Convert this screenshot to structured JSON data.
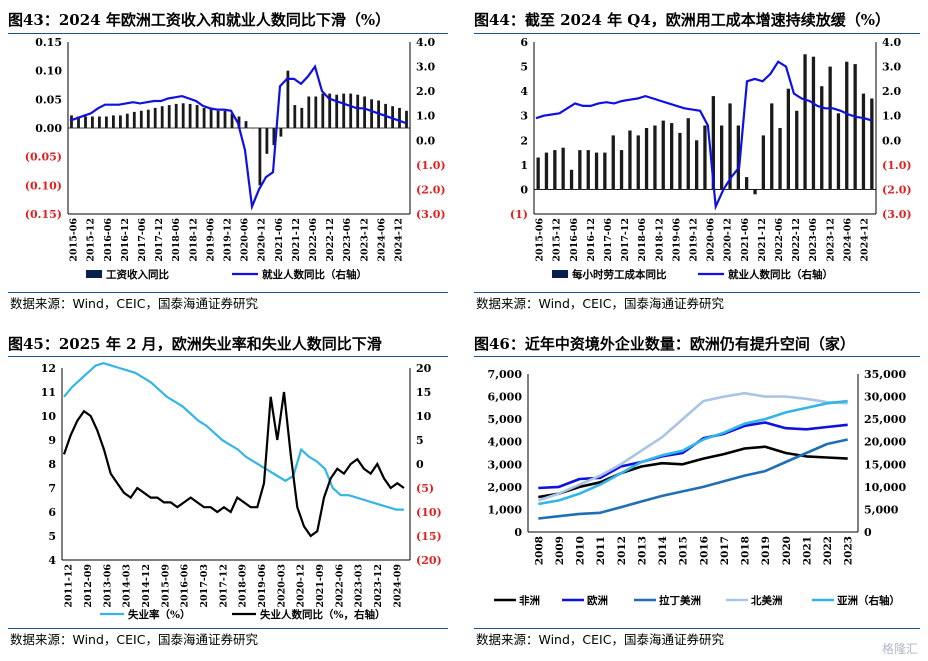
{
  "panels": [
    {
      "title": "图43：2024 年欧洲工资收入和就业人数同比下滑（%）",
      "source": "数据来源：Wind，CEIC，国泰海通证券研究"
    },
    {
      "title": "图44：截至 2024 年 Q4，欧洲用工成本增速持续放缓（%）",
      "source": "数据来源：Wind，CEIC，国泰海通证券研究"
    },
    {
      "title": "图45：2025 年 2 月，欧洲失业率和失业人数同比下滑",
      "source": "数据来源：Wind，CEIC，国泰海通证券研究"
    },
    {
      "title": "图46：近年中资境外企业数量：欧洲仍有提升空间（家）",
      "source": "数据来源：Wind，CEIC，国泰海通证券研究"
    }
  ],
  "watermark": "格隆汇",
  "colors": {
    "bar": "#1a1a1a",
    "blue": "#1010e0",
    "red": "#e02020",
    "cyan": "#33b5e5",
    "steel": "#1f6fb5",
    "lightblue": "#a9c4e4",
    "navy": "#0a1e50",
    "rule": "#1f4e9a"
  },
  "chart_data": [
    {
      "type": "bar+line",
      "x_ticks": [
        "2015-06",
        "2015-12",
        "2016-06",
        "2016-12",
        "2017-06",
        "2017-12",
        "2018-06",
        "2018-12",
        "2019-06",
        "2019-12",
        "2020-06",
        "2020-12",
        "2021-06",
        "2021-12",
        "2022-06",
        "2022-12",
        "2023-06",
        "2023-12",
        "2024-06",
        "2024-12"
      ],
      "left_ticks": [
        "0.15",
        "0.10",
        "0.05",
        "0.00",
        "(0.05)",
        "(0.10)",
        "(0.15)"
      ],
      "right_ticks": [
        "4.0",
        "3.0",
        "2.0",
        "1.0",
        "0.0",
        "(1.0)",
        "(2.0)",
        "(3.0)"
      ],
      "ylim_left": [
        -0.15,
        0.15
      ],
      "ylim_right": [
        -3,
        4
      ],
      "legend": [
        "工资收入同比",
        "就业人数同比（右轴）"
      ],
      "bars": [
        0.022,
        0.02,
        0.02,
        0.02,
        0.02,
        0.02,
        0.022,
        0.022,
        0.025,
        0.028,
        0.03,
        0.032,
        0.035,
        0.038,
        0.04,
        0.042,
        0.043,
        0.042,
        0.04,
        0.035,
        0.035,
        0.03,
        0.03,
        0.025,
        0.02,
        0.012,
        0.0,
        -0.1,
        -0.045,
        -0.03,
        -0.015,
        0.1,
        0.04,
        0.035,
        0.055,
        0.055,
        0.06,
        0.06,
        0.058,
        0.06,
        0.06,
        0.058,
        0.055,
        0.05,
        0.048,
        0.042,
        0.038,
        0.035,
        0.03
      ],
      "line": [
        0.8,
        0.9,
        1.0,
        1.1,
        1.3,
        1.45,
        1.45,
        1.45,
        1.5,
        1.55,
        1.5,
        1.55,
        1.6,
        1.6,
        1.7,
        1.75,
        1.8,
        1.7,
        1.6,
        1.4,
        1.3,
        1.25,
        1.25,
        1.2,
        0.7,
        -0.4,
        -2.7,
        -2.0,
        -1.5,
        -1.3,
        2.2,
        2.5,
        2.5,
        2.3,
        2.6,
        3.0,
        2.0,
        1.7,
        1.6,
        1.5,
        1.4,
        1.3,
        1.3,
        1.2,
        1.1,
        1.0,
        0.9,
        0.8,
        0.7
      ]
    },
    {
      "type": "bar+line",
      "x_ticks": [
        "2015-06",
        "2015-12",
        "2016-06",
        "2016-12",
        "2017-06",
        "2017-12",
        "2018-06",
        "2018-12",
        "2019-06",
        "2019-12",
        "2020-06",
        "2020-12",
        "2021-06",
        "2021-12",
        "2022-06",
        "2022-12",
        "2023-06",
        "2023-12",
        "2024-06",
        "2024-12"
      ],
      "left_ticks": [
        "6",
        "5",
        "4",
        "3",
        "2",
        "1",
        "0",
        "(1)"
      ],
      "right_ticks": [
        "4.0",
        "3.0",
        "2.0",
        "1.0",
        "0.0",
        "(1.0)",
        "(2.0)",
        "(3.0)"
      ],
      "ylim_left": [
        -1,
        6
      ],
      "ylim_right": [
        -3,
        4
      ],
      "legend": [
        "每小时劳工成本同比",
        "就业人数同比（右轴）"
      ],
      "bars": [
        1.3,
        1.5,
        1.6,
        1.7,
        0.8,
        1.6,
        1.6,
        1.5,
        1.5,
        2.2,
        1.6,
        2.4,
        2.2,
        2.5,
        2.6,
        2.8,
        2.7,
        2.3,
        2.9,
        2.0,
        2.6,
        3.8,
        2.6,
        3.5,
        2.6,
        0.5,
        -0.2,
        2.2,
        3.5,
        2.5,
        4.1,
        3.2,
        5.5,
        5.4,
        4.2,
        5.0,
        3.1,
        5.2,
        5.1,
        3.9,
        3.7
      ],
      "line": [
        0.9,
        1.0,
        1.05,
        1.1,
        1.3,
        1.5,
        1.4,
        1.4,
        1.5,
        1.55,
        1.5,
        1.6,
        1.65,
        1.7,
        1.8,
        1.7,
        1.6,
        1.5,
        1.4,
        1.3,
        1.25,
        1.2,
        0.6,
        -2.7,
        -2.0,
        -1.5,
        -1.1,
        2.4,
        2.5,
        2.4,
        2.7,
        3.2,
        3.0,
        1.9,
        1.7,
        1.6,
        1.4,
        1.3,
        1.3,
        1.2,
        1.05,
        0.95,
        0.9,
        0.8
      ]
    },
    {
      "type": "line",
      "x_ticks": [
        "2011-12",
        "2012-09",
        "2013-06",
        "2014-03",
        "2014-12",
        "2015-09",
        "2016-06",
        "2017-03",
        "2017-12",
        "2018-09",
        "2019-06",
        "2020-03",
        "2020-12",
        "2021-09",
        "2022-06",
        "2023-03",
        "2023-12",
        "2024-09"
      ],
      "left_ticks": [
        "12",
        "11",
        "10",
        "9",
        "8",
        "7",
        "6",
        "5",
        "4"
      ],
      "right_ticks": [
        "20",
        "15",
        "10",
        "5",
        "0",
        "(5)",
        "(10)",
        "(15)",
        "(20)"
      ],
      "ylim_left": [
        4,
        12
      ],
      "ylim_right": [
        -20,
        20
      ],
      "legend": [
        "失业率（%）",
        "失业人数同比（%，右轴）"
      ],
      "unemployment_rate": [
        10.8,
        11.2,
        11.5,
        11.8,
        12.1,
        12.2,
        12.1,
        12.0,
        11.9,
        11.8,
        11.6,
        11.4,
        11.1,
        10.8,
        10.6,
        10.4,
        10.1,
        9.8,
        9.6,
        9.3,
        9.0,
        8.8,
        8.6,
        8.3,
        8.1,
        7.9,
        7.7,
        7.5,
        7.3,
        7.5,
        8.6,
        8.3,
        8.1,
        7.8,
        7.0,
        6.7,
        6.7,
        6.6,
        6.5,
        6.4,
        6.3,
        6.2,
        6.1,
        6.1
      ],
      "unemployed_yoy": [
        2,
        6,
        9,
        11,
        10,
        7,
        3,
        -2,
        -4,
        -6,
        -7,
        -5,
        -6,
        -7,
        -7,
        -8,
        -8,
        -9,
        -8,
        -7,
        -8,
        -9,
        -9,
        -10,
        -9,
        -10,
        -7,
        -8,
        -9,
        -9,
        -4,
        14,
        5,
        15,
        2,
        -9,
        -13,
        -15,
        -14,
        -7,
        -3,
        -1,
        -2,
        0,
        1,
        -1,
        -2,
        0,
        -3,
        -5,
        -4,
        -5
      ]
    },
    {
      "type": "line",
      "categories": [
        "2008",
        "2009",
        "2010",
        "2011",
        "2012",
        "2013",
        "2014",
        "2015",
        "2016",
        "2017",
        "2018",
        "2019",
        "2020",
        "2021",
        "2022",
        "2023"
      ],
      "left_ticks": [
        "7,000",
        "6,000",
        "5,000",
        "4,000",
        "3,000",
        "2,000",
        "1,000",
        "0"
      ],
      "right_ticks": [
        "35,000",
        "30,000",
        "25,000",
        "20,000",
        "15,000",
        "10,000",
        "5,000",
        "0"
      ],
      "ylim_left": [
        0,
        7000
      ],
      "ylim_right": [
        0,
        35000
      ],
      "series": [
        {
          "name": "非洲",
          "values": [
            1550,
            1700,
            2000,
            2200,
            2600,
            2900,
            3050,
            3000,
            3250,
            3450,
            3700,
            3780,
            3500,
            3350,
            3300,
            3250
          ]
        },
        {
          "name": "欧洲",
          "values": [
            1950,
            2000,
            2350,
            2400,
            2900,
            3100,
            3350,
            3500,
            4150,
            4350,
            4700,
            4850,
            4600,
            4550,
            4650,
            4750
          ]
        },
        {
          "name": "拉丁美洲",
          "values": [
            600,
            700,
            800,
            850,
            1100,
            1350,
            1600,
            1800,
            2000,
            2250,
            2500,
            2700,
            3100,
            3500,
            3900,
            4100
          ]
        },
        {
          "name": "北美洲",
          "values": [
            1400,
            1700,
            2100,
            2500,
            3000,
            3600,
            4200,
            5000,
            5800,
            6000,
            6150,
            6000,
            6000,
            5900,
            5750,
            5700
          ]
        },
        {
          "name": "亚洲（右轴）",
          "values": [
            6200,
            7000,
            8500,
            10500,
            13000,
            15500,
            17000,
            18000,
            20500,
            22000,
            24000,
            25000,
            26500,
            27500,
            28500,
            29000
          ]
        }
      ]
    }
  ]
}
